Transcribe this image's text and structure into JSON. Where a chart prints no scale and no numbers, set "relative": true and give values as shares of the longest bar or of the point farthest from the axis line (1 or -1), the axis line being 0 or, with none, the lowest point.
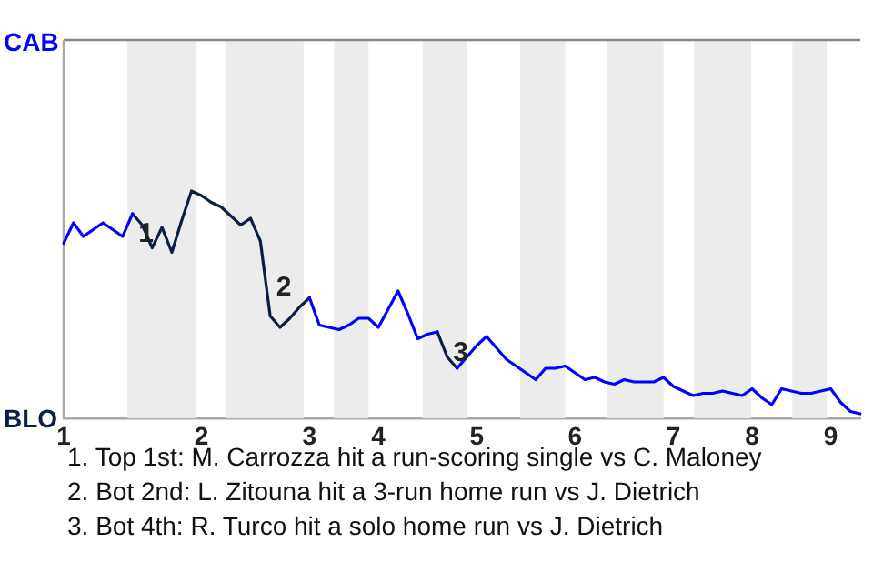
{
  "chart_data": {
    "type": "line",
    "relative": true,
    "tick_labels": "x",
    "categories": [
      "1",
      null,
      null,
      null,
      null,
      null,
      null,
      null,
      null,
      null,
      null,
      null,
      null,
      null,
      "2",
      null,
      null,
      null,
      null,
      null,
      null,
      null,
      null,
      null,
      null,
      "3",
      null,
      null,
      null,
      null,
      null,
      null,
      "4",
      null,
      null,
      null,
      null,
      null,
      null,
      null,
      null,
      null,
      "5",
      null,
      null,
      null,
      null,
      null,
      null,
      null,
      null,
      null,
      "6",
      null,
      null,
      null,
      null,
      null,
      null,
      null,
      null,
      null,
      "7",
      null,
      null,
      null,
      null,
      null,
      null,
      null,
      "8",
      null,
      null,
      null,
      null,
      null,
      null,
      null,
      "9",
      null,
      null,
      null
    ],
    "series": [
      {
        "color": "#0000ff",
        "values": [
          0.77,
          0.86,
          0.8,
          0.83,
          0.86,
          0.83,
          0.8,
          0.9,
          null,
          null,
          null,
          null,
          null,
          null,
          null,
          null,
          null,
          null,
          null,
          null,
          null,
          null,
          null,
          null,
          null,
          0.53,
          0.41,
          0.4,
          0.39,
          0.41,
          0.44,
          0.44,
          0.4,
          0.48,
          0.56,
          0.46,
          0.35,
          0.37,
          0.38,
          null,
          0.22,
          0.27,
          0.32,
          0.36,
          0.31,
          0.26,
          0.23,
          0.2,
          0.17,
          0.22,
          0.22,
          0.23,
          0.2,
          0.17,
          0.18,
          0.16,
          0.15,
          0.17,
          0.16,
          0.16,
          0.16,
          0.18,
          0.14,
          0.12,
          0.1,
          0.11,
          0.11,
          0.12,
          0.11,
          0.1,
          0.13,
          0.09,
          0.06,
          0.13,
          0.12,
          0.11,
          0.11,
          0.12,
          0.13,
          0.07,
          0.03,
          0.02
        ]
      },
      {
        "color": "#0a1f44",
        "values": [
          null,
          null,
          null,
          null,
          null,
          null,
          null,
          0.9,
          0.85,
          0.75,
          0.84,
          0.73,
          0.87,
          1,
          0.98,
          0.95,
          0.93,
          0.89,
          0.85,
          0.88,
          0.78,
          0.45,
          0.4,
          0.44,
          0.49,
          0.53,
          null,
          null,
          null,
          null,
          null,
          null,
          null,
          null,
          null,
          null,
          null,
          null,
          0.38,
          0.27,
          0.22,
          null,
          null,
          null,
          null,
          null,
          null,
          null,
          null,
          null,
          null,
          null,
          null,
          null,
          null,
          null,
          null,
          null,
          null,
          null,
          null,
          null,
          null,
          null,
          null,
          null,
          null,
          null,
          null,
          null,
          null,
          null,
          null,
          null,
          null,
          null,
          null,
          null,
          null,
          null,
          null,
          null
        ]
      }
    ],
    "legend": false,
    "marker": "none",
    "line_style": "solid",
    "annotations": [
      "CAB",
      "BLO",
      "1",
      "2",
      "3",
      "1. Top 1st: M. Carrozza hit a run-scoring single vs C. Maloney",
      "2. Bot 2nd: L. Zitouna hit a 3-run home run vs J. Dietrich",
      "3. Bot 4th: R. Turco hit a solo home run vs J. Dietrich"
    ]
  }
}
